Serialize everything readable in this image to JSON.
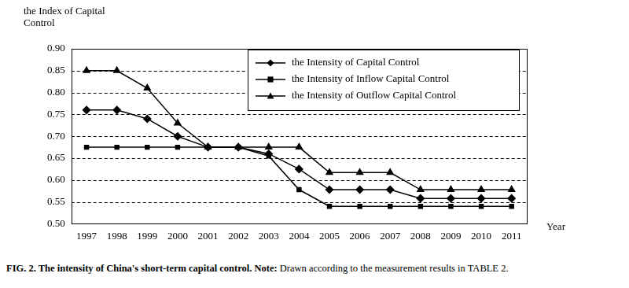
{
  "chart_data": {
    "type": "line",
    "title": "FIG. 2. The intensity of China's short-term capital control.",
    "note": "Note: Drawn according to the measurement results in TABLE 2.",
    "y_label": "the Index of Capital\nControl",
    "x_label": "Year",
    "categories": [
      "1997",
      "1998",
      "1999",
      "2000",
      "2001",
      "2002",
      "2003",
      "2004",
      "2005",
      "2006",
      "2007",
      "2008",
      "2009",
      "2010",
      "2011"
    ],
    "series": [
      {
        "name": "the Intensity of Capital Control",
        "color": "#000000",
        "marker": "diamond",
        "values": [
          0.76,
          0.76,
          0.74,
          0.7,
          0.675,
          0.675,
          0.66,
          0.625,
          0.578,
          0.578,
          0.578,
          0.558,
          0.558,
          0.558,
          0.558
        ]
      },
      {
        "name": "the Intensity of Inflow Capital Control",
        "color": "#000000",
        "marker": "square",
        "values": [
          0.675,
          0.675,
          0.675,
          0.675,
          0.675,
          0.675,
          0.655,
          0.578,
          0.54,
          0.54,
          0.54,
          0.54,
          0.54,
          0.54,
          0.54
        ]
      },
      {
        "name": "the Intensity of Outflow Capital Control",
        "color": "#000000",
        "marker": "triangle",
        "values": [
          0.85,
          0.85,
          0.81,
          0.73,
          0.675,
          0.675,
          0.675,
          0.675,
          0.617,
          0.617,
          0.617,
          0.578,
          0.578,
          0.578,
          0.578
        ]
      }
    ],
    "ylim": [
      0.5,
      0.9
    ],
    "yticks": [
      {
        "value": 0.5,
        "label": "0.50"
      },
      {
        "value": 0.55,
        "label": "0.55"
      },
      {
        "value": 0.6,
        "label": "0.60"
      },
      {
        "value": 0.65,
        "label": "0.65"
      },
      {
        "value": 0.7,
        "label": "0.70"
      },
      {
        "value": 0.75,
        "label": "0.75"
      },
      {
        "value": 0.8,
        "label": "0.80"
      },
      {
        "value": 0.85,
        "label": "0.85"
      },
      {
        "value": 0.9,
        "label": "0.90"
      }
    ],
    "grid": true,
    "legend": "upper right"
  }
}
